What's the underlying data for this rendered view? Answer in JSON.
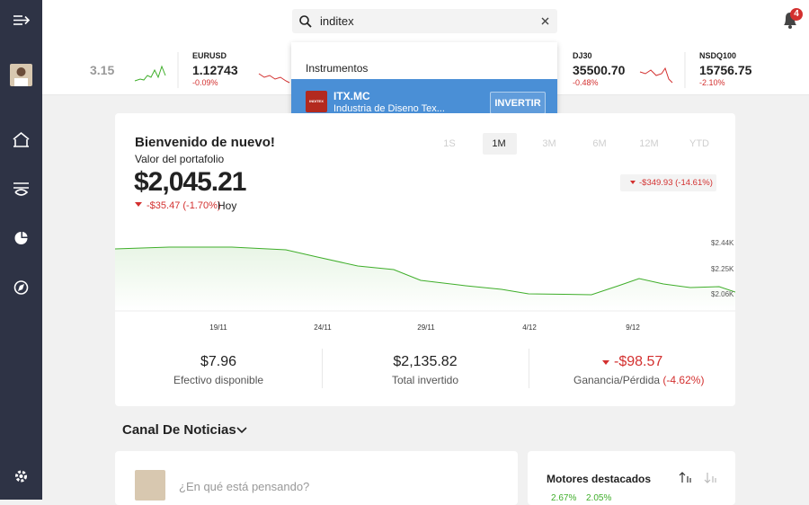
{
  "search": {
    "query": "inditex"
  },
  "notifications": {
    "count": "4"
  },
  "tickers": [
    {
      "price": "3.15"
    },
    {
      "symbol": "EURUSD",
      "price": "1.12743",
      "change": "-0.09%"
    },
    {
      "symbol": "DJ30",
      "price": "35500.70",
      "change": "-0.48%"
    },
    {
      "symbol": "NSDQ100",
      "price": "15756.75",
      "change": "-2.10%"
    }
  ],
  "dropdown": {
    "header": "Instrumentos",
    "results": [
      {
        "logo": "INDITEX",
        "symbol": "ITX.MC",
        "name": "Industria de Diseno Tex...",
        "action": "INVERTIR"
      }
    ]
  },
  "portfolio": {
    "greeting": "Bienvenido de nuevo!",
    "label": "Valor del portafolio",
    "value": "$2,045.21",
    "day_change": "-$35.47 (-1.70%)",
    "day_label": "Hoy",
    "periods": [
      "1S",
      "1M",
      "3M",
      "6M",
      "12M",
      "YTD"
    ],
    "period_change": "-$349.93 (-14.61%)",
    "chart_y_labels": [
      "$2.44K",
      "$2.25K",
      "$2.06K"
    ],
    "chart_x_labels": [
      "19/11",
      "24/11",
      "29/11",
      "4/12",
      "9/12"
    ],
    "stats": [
      {
        "value": "$7.96",
        "label": "Efectivo disponible"
      },
      {
        "value": "$2,135.82",
        "label": "Total invertido"
      },
      {
        "value": "-$98.57",
        "label": "Ganancia/Pérdida",
        "extra": "(-4.62%)"
      }
    ]
  },
  "news": {
    "title": "Canal De Noticias",
    "placeholder": "¿En qué está pensando?"
  },
  "movers": {
    "title": "Motores destacados",
    "items": [
      "2.67%",
      "2.05%"
    ]
  }
}
